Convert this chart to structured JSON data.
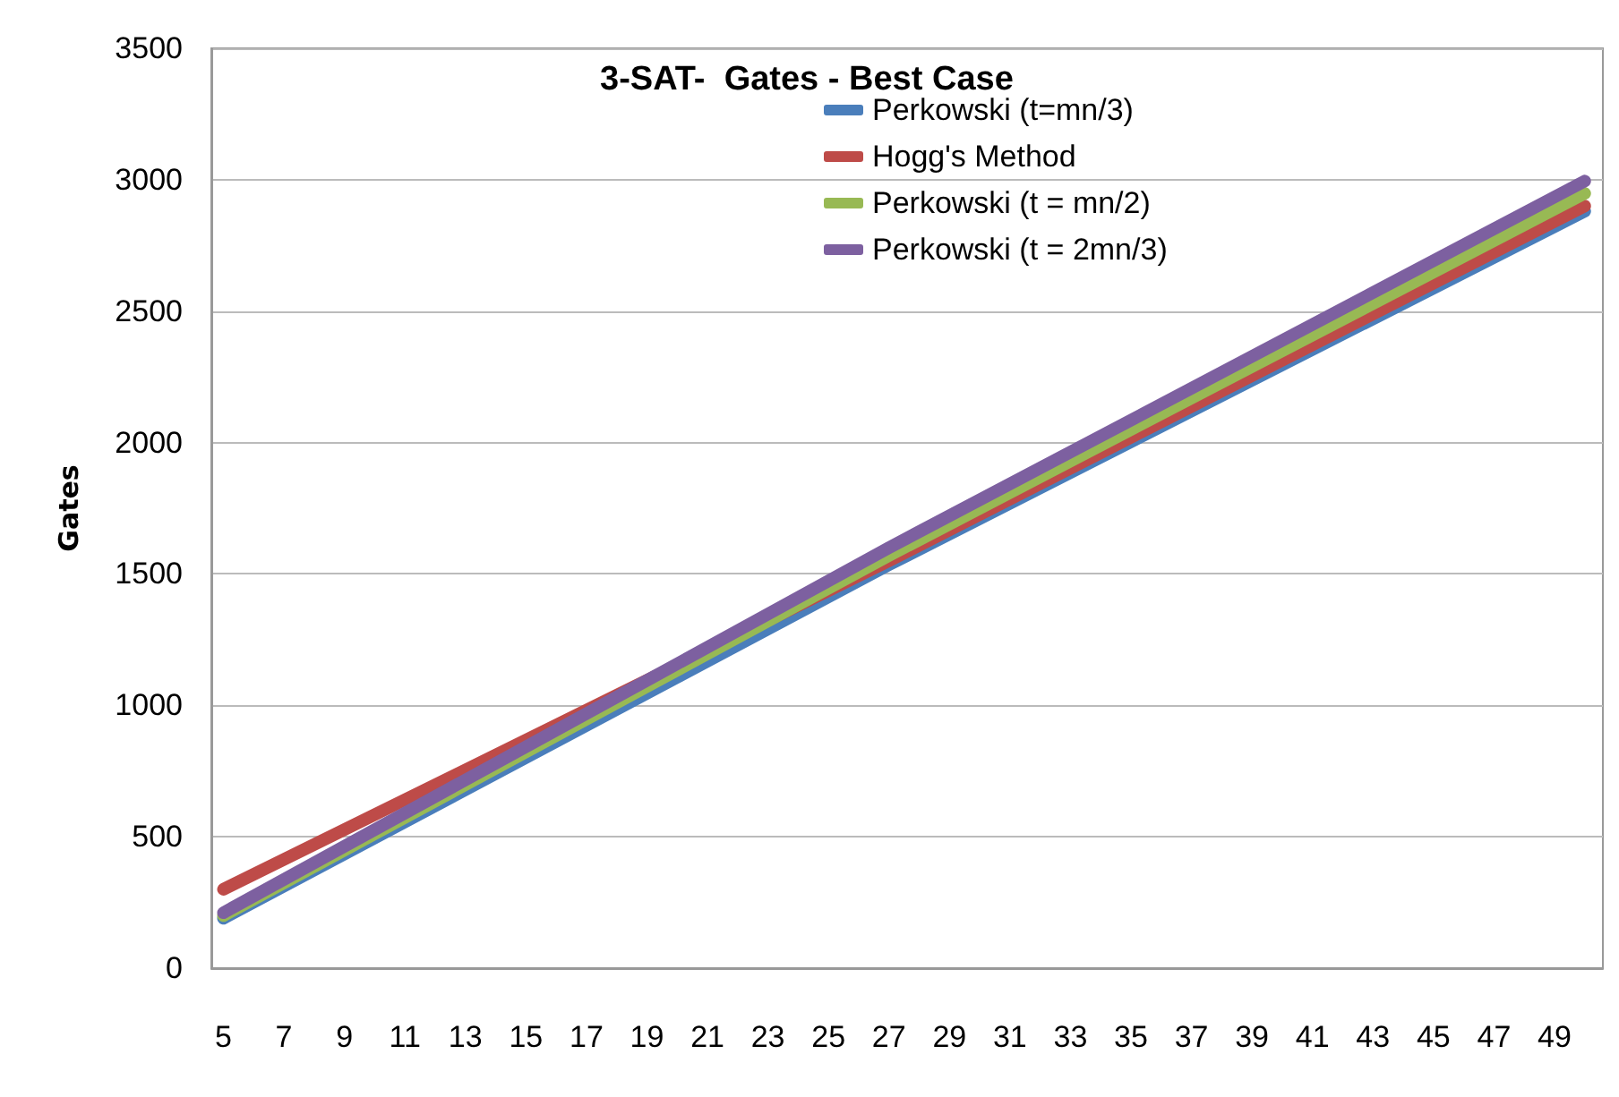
{
  "chart_data": {
    "type": "line",
    "title": "3-SAT-  Gates - Best Case",
    "ylabel": "Gates",
    "xlim": [
      4.6,
      50.6
    ],
    "xticks": [
      5,
      7,
      9,
      11,
      13,
      15,
      17,
      19,
      21,
      23,
      25,
      27,
      29,
      31,
      33,
      35,
      37,
      39,
      41,
      43,
      45,
      47,
      49
    ],
    "ylim": [
      0,
      3500
    ],
    "yticks": [
      0,
      500,
      1000,
      1500,
      2000,
      2500,
      3000,
      3500
    ],
    "grid": "y",
    "legend": "top",
    "marker": "none",
    "line_style": "solid",
    "series": [
      {
        "name": "Perkowski (t=mn/3)",
        "color": "#4a7ebb",
        "x": [
          5,
          27,
          50
        ],
        "values": [
          190,
          1535,
          2880
        ]
      },
      {
        "name": "Hogg's Method",
        "color": "#be4b48",
        "x": [
          5,
          27,
          50
        ],
        "values": [
          300,
          1550,
          2900
        ]
      },
      {
        "name": "Perkowski (t = mn/2)",
        "color": "#98b954",
        "x": [
          5,
          27,
          50
        ],
        "values": [
          200,
          1570,
          2948
        ]
      },
      {
        "name": "Perkowski (t = 2mn/3)",
        "color": "#7d60a0",
        "x": [
          5,
          27,
          50
        ],
        "values": [
          211,
          1600,
          2995
        ]
      }
    ]
  }
}
